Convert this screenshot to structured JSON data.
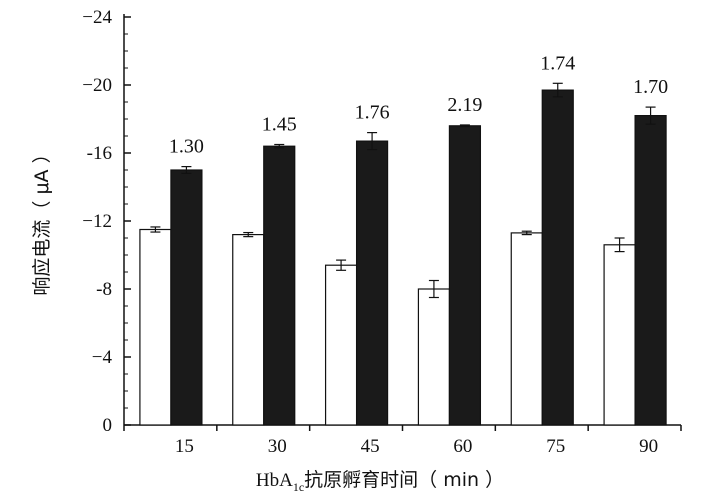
{
  "chart_data": {
    "type": "bar",
    "categories": [
      "15",
      "30",
      "45",
      "60",
      "75",
      "90"
    ],
    "series": [
      {
        "fill": "#ffffff",
        "values": [
          -11.5,
          -11.2,
          -9.4,
          -8.0,
          -11.3,
          -10.6
        ],
        "errors": [
          0.15,
          0.12,
          0.3,
          0.5,
          0.1,
          0.4
        ]
      },
      {
        "fill": "#1a1a1a",
        "values": [
          -15.0,
          -16.4,
          -16.7,
          -17.6,
          -19.7,
          -18.2
        ],
        "errors": [
          0.2,
          0.1,
          0.5,
          0.05,
          0.4,
          0.5
        ]
      }
    ],
    "data_labels": [
      "1.30",
      "1.45",
      "1.76",
      "2.19",
      "1.74",
      "1.70"
    ],
    "y_ticks": [
      "0",
      "−4",
      "-8",
      "−12",
      "-16",
      "−20",
      "−24"
    ],
    "ylim": [
      0,
      -24
    ],
    "xlabel_main": "HbA",
    "xlabel_sub": "1c",
    "xlabel_rest": "抗原孵育时间（ min ）",
    "ylabel": "响应电流（ μA ）"
  }
}
